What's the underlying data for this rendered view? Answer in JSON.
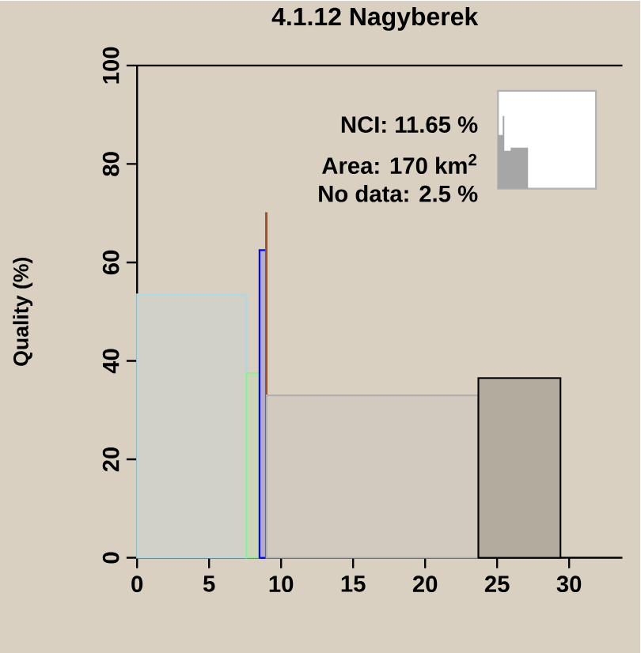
{
  "chart_data": {
    "type": "histogram",
    "title": "4.1.12 Nagyberek",
    "ylabel": "Quality (%)",
    "bins": [
      0,
      7.6,
      8.5,
      8.95,
      9.0,
      23.7,
      29.4
    ],
    "values": [
      53.5,
      37.5,
      62.5,
      70,
      33,
      36.5
    ],
    "colors": [
      "#add8e6",
      "#90ee90",
      "#0000ff",
      "#a0522d",
      "#b0b0b0",
      "#000000"
    ],
    "xlim": [
      0,
      33.7
    ],
    "ylim": [
      0,
      100
    ],
    "xticks": [
      0,
      5,
      10,
      15,
      20,
      25,
      30
    ],
    "yticks": [
      0,
      20,
      40,
      60,
      80,
      100
    ],
    "grid": false,
    "annotations": [
      "NCI: 11.65 %",
      "Area: 170 km$^{2}$",
      "No data: 2.5 %"
    ]
  }
}
